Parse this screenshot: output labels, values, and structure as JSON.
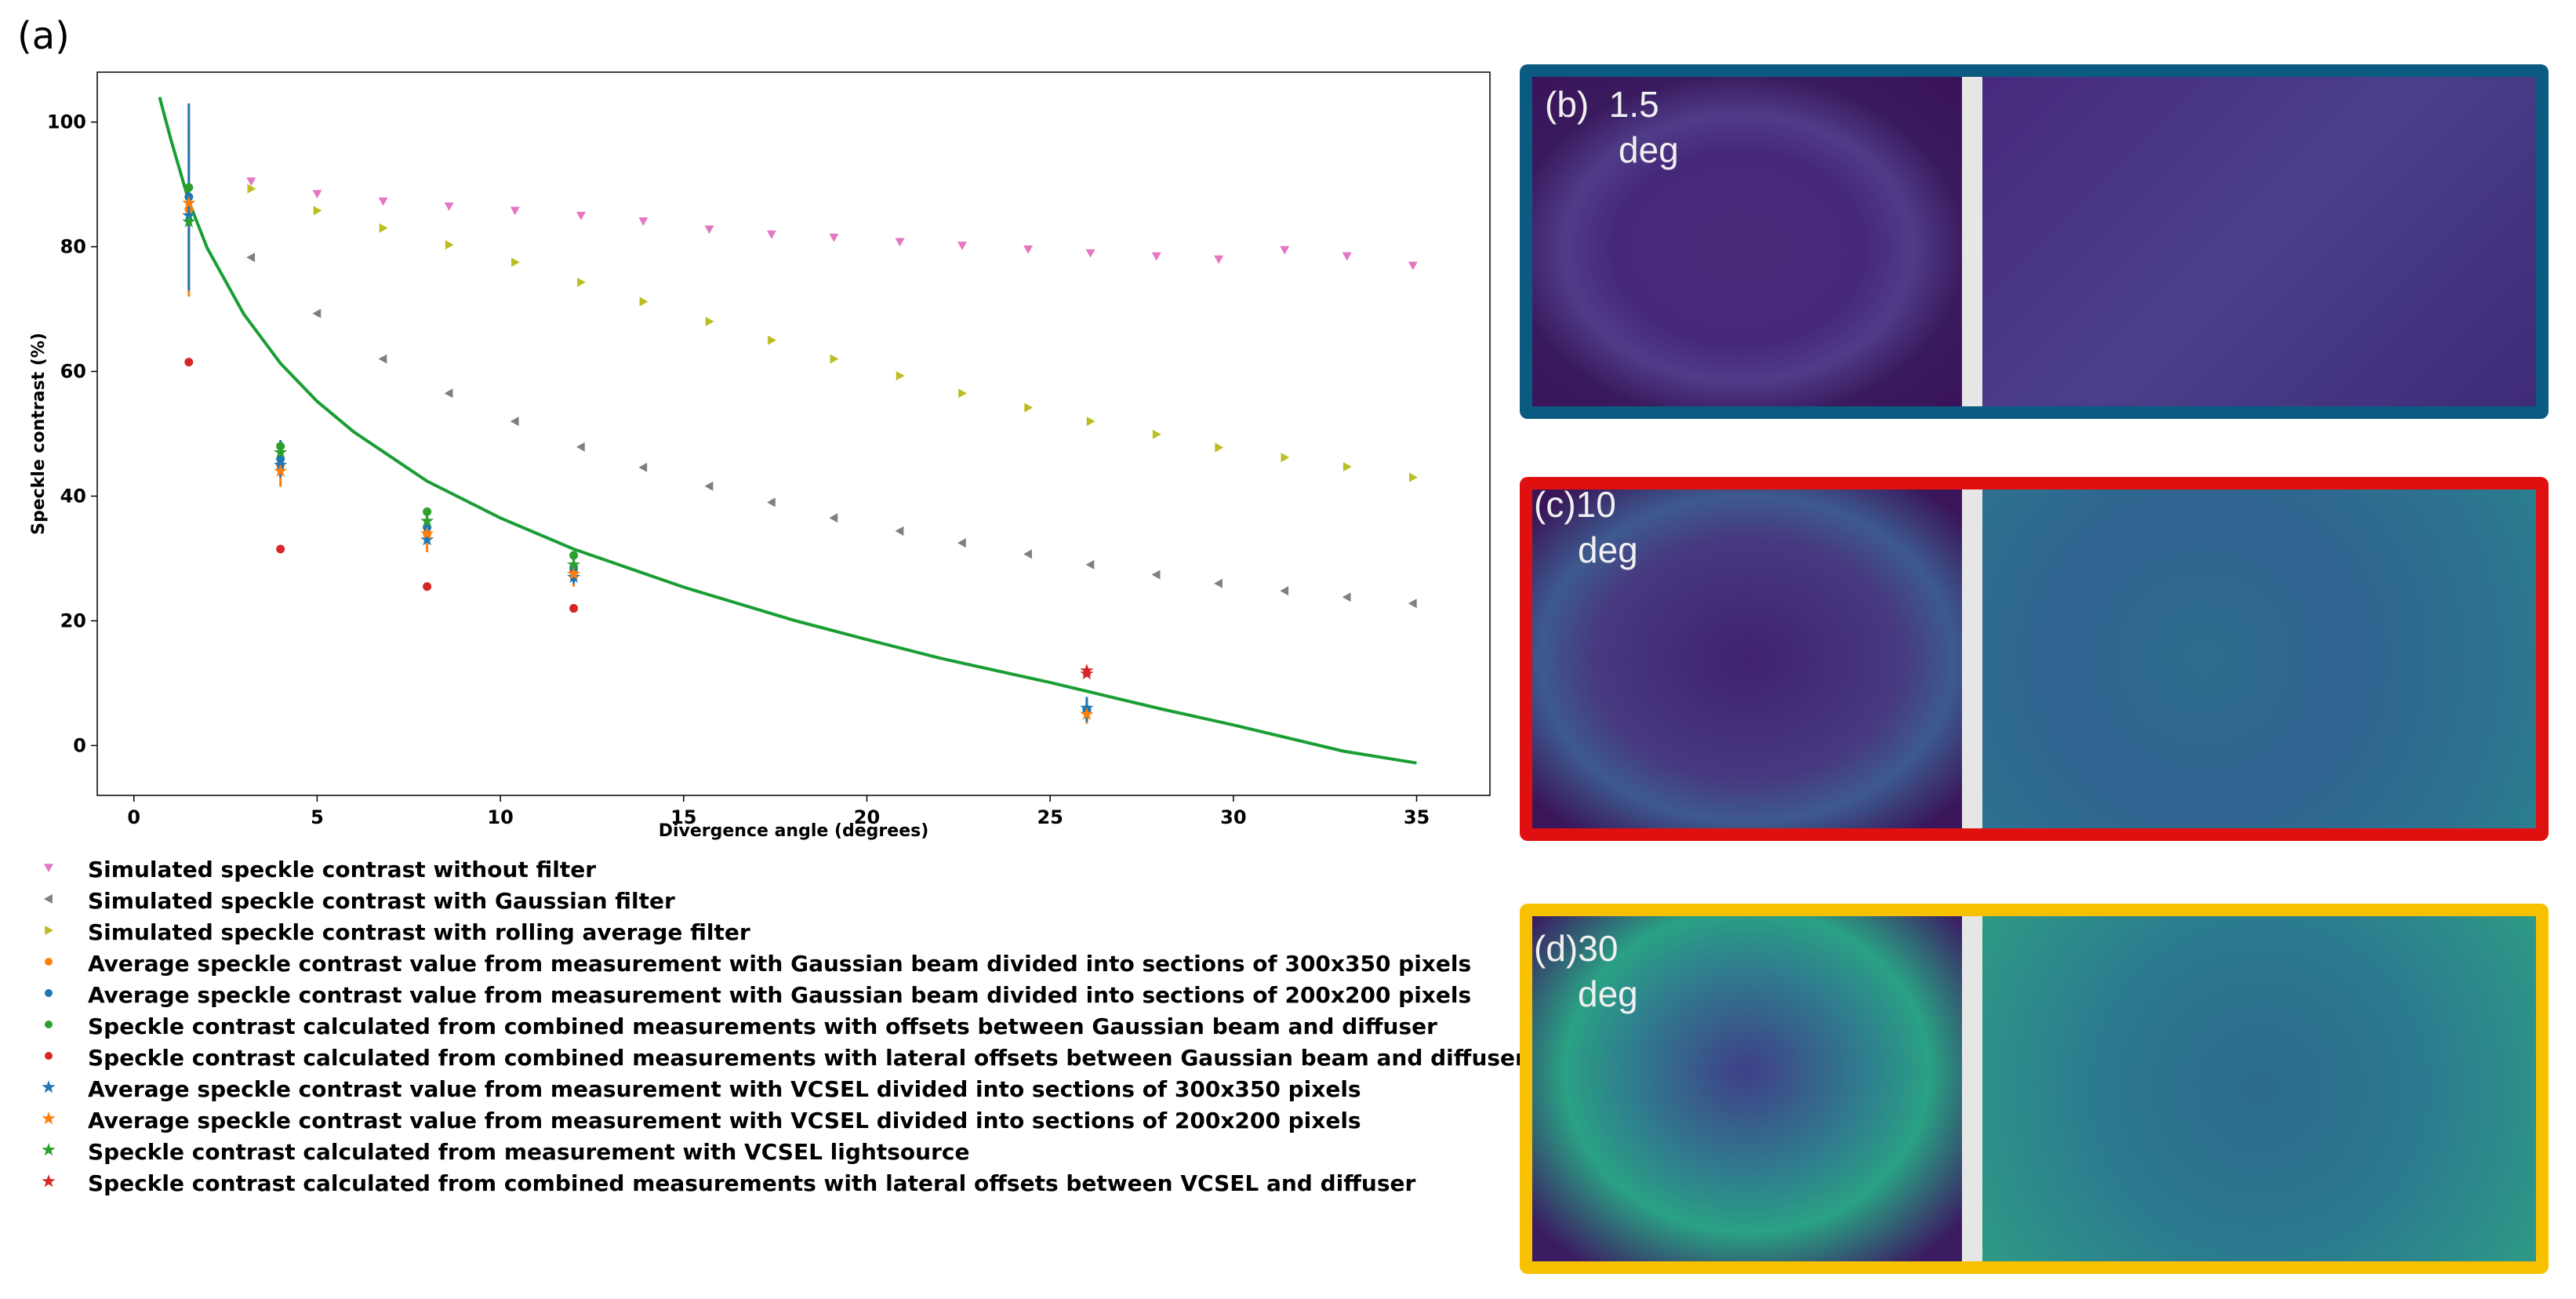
{
  "figure": {
    "panel_a_label": "(a)"
  },
  "chart_data": {
    "type": "scatter",
    "title": "",
    "xlabel": "Divergence angle (degrees)",
    "ylabel": "Speckle contrast (%)",
    "xlim": [
      -1,
      37
    ],
    "ylim": [
      -8,
      108
    ],
    "xticks": [
      0,
      5,
      10,
      15,
      20,
      25,
      30,
      35
    ],
    "yticks": [
      0,
      20,
      40,
      60,
      80,
      100
    ],
    "grid": false,
    "legend_position": "below",
    "series": [
      {
        "name": "Simulated speckle contrast without filter",
        "marker": "triangle-down",
        "color": "#e377c2",
        "x": [
          3.2,
          5,
          6.8,
          8.6,
          10.4,
          12.2,
          13.9,
          15.7,
          17.4,
          19.1,
          20.9,
          22.6,
          24.4,
          26.1,
          27.9,
          29.6,
          31.4,
          33.1,
          34.9
        ],
        "y": [
          90.5,
          88.5,
          87.3,
          86.5,
          85.8,
          85.0,
          84.1,
          82.8,
          82.0,
          81.5,
          80.8,
          80.2,
          79.6,
          79.0,
          78.5,
          78.0,
          79.5,
          78.5,
          77.0
        ]
      },
      {
        "name": "Simulated speckle contrast with Gaussian filter",
        "marker": "triangle-left",
        "color": "#7f7f7f",
        "x": [
          3.2,
          5,
          6.8,
          8.6,
          10.4,
          12.2,
          13.9,
          15.7,
          17.4,
          19.1,
          20.9,
          22.6,
          24.4,
          26.1,
          27.9,
          29.6,
          31.4,
          33.1,
          34.9
        ],
        "y": [
          78.3,
          69.3,
          62.0,
          56.5,
          52.0,
          47.9,
          44.6,
          41.6,
          39.0,
          36.5,
          34.4,
          32.5,
          30.7,
          29.0,
          27.4,
          26.0,
          24.8,
          23.8,
          22.8
        ]
      },
      {
        "name": "Simulated speckle contrast with rolling average filter",
        "marker": "triangle-right",
        "color": "#bcbd22",
        "x": [
          3.2,
          5,
          6.8,
          8.6,
          10.4,
          12.2,
          13.9,
          15.7,
          17.4,
          19.1,
          20.9,
          22.6,
          24.4,
          26.1,
          27.9,
          29.6,
          31.4,
          33.1,
          34.9
        ],
        "y": [
          89.3,
          85.8,
          83.0,
          80.3,
          77.5,
          74.3,
          71.2,
          68.0,
          65.0,
          62.0,
          59.3,
          56.5,
          54.2,
          52.0,
          49.9,
          47.8,
          46.2,
          44.7,
          43.0
        ]
      },
      {
        "name": "Average speckle contrast value from measurement with Gaussian beam divided into sections of 300x350 pixels",
        "marker": "circle",
        "color": "#ff7f0e",
        "x": [
          1.5,
          4,
          8,
          12,
          26
        ],
        "y": [
          86,
          45,
          34,
          28,
          5.5
        ],
        "yerr": [
          14,
          3.5,
          3,
          2.5,
          2
        ]
      },
      {
        "name": "Average speckle contrast value from measurement with Gaussian beam divided into sections of 200x200 pixels",
        "marker": "circle",
        "color": "#1f77b4",
        "x": [
          1.5,
          4,
          8,
          12,
          26
        ],
        "y": [
          88,
          46,
          35,
          28.5,
          5.8
        ],
        "yerr": [
          15,
          3,
          2.5,
          2.5,
          2
        ]
      },
      {
        "name": "Speckle contrast calculated from combined measurements with offsets between Gaussian beam and diffuser",
        "marker": "circle",
        "color": "#2ca02c",
        "x": [
          1.5,
          4,
          8,
          12
        ],
        "y": [
          89.5,
          48,
          37.5,
          30.5
        ]
      },
      {
        "name": "Speckle contrast calculated from combined measurements with lateral offsets between Gaussian beam and diffuser",
        "marker": "circle",
        "color": "#d62728",
        "x": [
          1.5,
          4,
          8,
          12
        ],
        "y": [
          61.5,
          31.5,
          25.5,
          22
        ]
      },
      {
        "name": "Average speckle contrast value from measurement with VCSEL divided into sections of 300x350 pixels",
        "marker": "star",
        "color": "#1f77b4",
        "x": [
          1.5,
          4,
          8,
          12,
          26
        ],
        "y": [
          85,
          45,
          33,
          27,
          6
        ]
      },
      {
        "name": "Average speckle contrast value from measurement with VCSEL divided into sections of 200x200 pixels",
        "marker": "star",
        "color": "#ff7f0e",
        "x": [
          1.5,
          4,
          8,
          12,
          26
        ],
        "y": [
          87,
          44,
          34,
          27.5,
          5
        ]
      },
      {
        "name": "Speckle contrast calculated from measurement with VCSEL lightsource",
        "marker": "star",
        "color": "#2ca02c",
        "x": [
          1.5,
          4,
          8,
          12
        ],
        "y": [
          84,
          47,
          36,
          29
        ]
      },
      {
        "name": "Speckle contrast calculated from combined measurements with lateral offsets between VCSEL and diffuser",
        "marker": "star",
        "color": "#d62728",
        "x": [
          26,
          26
        ],
        "y": [
          11.5,
          12
        ]
      }
    ],
    "fit_curve": {
      "color": "#1a9e34",
      "x": [
        0.7,
        1,
        1.5,
        2,
        3,
        4,
        5,
        6,
        8,
        10,
        12,
        15,
        18,
        20,
        22,
        25,
        28,
        30,
        33,
        35
      ],
      "y": [
        104,
        97.4,
        87.3,
        79.8,
        69.2,
        61.3,
        55.2,
        50.3,
        42.4,
        36.5,
        31.5,
        25.4,
        20.1,
        17.0,
        14.0,
        10.1,
        5.9,
        3.3,
        -0.9,
        -2.8
      ]
    }
  },
  "images": [
    {
      "id": "b",
      "label": "(b)",
      "angle": "1.5",
      "unit": "deg",
      "border": "#0b5a82"
    },
    {
      "id": "c",
      "label": "(c)",
      "angle": "10",
      "unit": "deg",
      "border": "#e01010"
    },
    {
      "id": "d",
      "label": "(d)",
      "angle": "30",
      "unit": "deg",
      "border": "#f7c000"
    }
  ]
}
